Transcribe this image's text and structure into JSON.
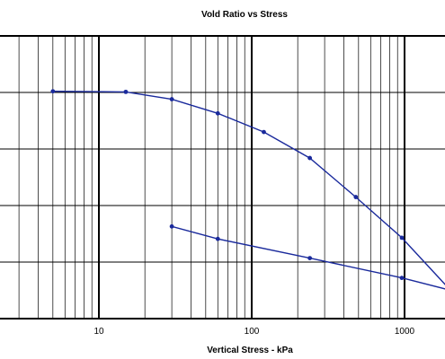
{
  "chart_data": {
    "type": "line",
    "title": "Vold Ratio vs Stress",
    "xlabel": "Vertical Stress - kPa",
    "ylabel": "",
    "x_scale": "log",
    "xlim": [
      1,
      2000
    ],
    "ylim": [
      0,
      5
    ],
    "x_tick_labels": [
      {
        "value": 10,
        "label": "10"
      },
      {
        "value": 100,
        "label": "100"
      },
      {
        "value": 1000,
        "label": "1000"
      }
    ],
    "y_gridlines": [
      0,
      1,
      2,
      3,
      4,
      5
    ],
    "grid": true,
    "line_color": "#1a2a9c",
    "series": [
      {
        "x": [
          5,
          15,
          30,
          60,
          120,
          240,
          480,
          960,
          2000
        ],
        "y": [
          4.02,
          4.01,
          3.88,
          3.63,
          3.3,
          2.84,
          2.15,
          1.43,
          0.5
        ]
      },
      {
        "x": [
          30,
          60,
          240,
          960,
          2000
        ],
        "y": [
          1.63,
          1.41,
          1.07,
          0.72,
          0.5
        ]
      }
    ]
  }
}
